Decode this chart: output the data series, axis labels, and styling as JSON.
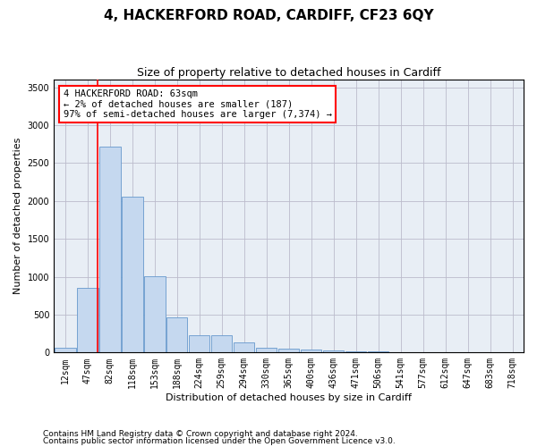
{
  "title": "4, HACKERFORD ROAD, CARDIFF, CF23 6QY",
  "subtitle": "Size of property relative to detached houses in Cardiff",
  "xlabel": "Distribution of detached houses by size in Cardiff",
  "ylabel": "Number of detached properties",
  "bar_categories": [
    "12sqm",
    "47sqm",
    "82sqm",
    "118sqm",
    "153sqm",
    "188sqm",
    "224sqm",
    "259sqm",
    "294sqm",
    "330sqm",
    "365sqm",
    "400sqm",
    "436sqm",
    "471sqm",
    "506sqm",
    "541sqm",
    "577sqm",
    "612sqm",
    "647sqm",
    "683sqm",
    "718sqm"
  ],
  "bar_values": [
    65,
    855,
    2720,
    2060,
    1010,
    460,
    230,
    230,
    130,
    65,
    55,
    45,
    30,
    20,
    10,
    5,
    3,
    3,
    2,
    2,
    2
  ],
  "bar_color": "#c5d8ef",
  "bar_edge_color": "#6699cc",
  "property_line_x": 1.45,
  "property_line_color": "red",
  "annotation_text": "4 HACKERFORD ROAD: 63sqm\n← 2% of detached houses are smaller (187)\n97% of semi-detached houses are larger (7,374) →",
  "annotation_box_color": "white",
  "annotation_box_edge_color": "red",
  "ylim": [
    0,
    3600
  ],
  "yticks": [
    0,
    500,
    1000,
    1500,
    2000,
    2500,
    3000,
    3500
  ],
  "grid_color": "#bbbbcc",
  "bg_color": "#e8eef5",
  "footnote1": "Contains HM Land Registry data © Crown copyright and database right 2024.",
  "footnote2": "Contains public sector information licensed under the Open Government Licence v3.0.",
  "title_fontsize": 11,
  "subtitle_fontsize": 9,
  "xlabel_fontsize": 8,
  "ylabel_fontsize": 8,
  "tick_fontsize": 7,
  "annotation_fontsize": 7.5,
  "footnote_fontsize": 6.5
}
